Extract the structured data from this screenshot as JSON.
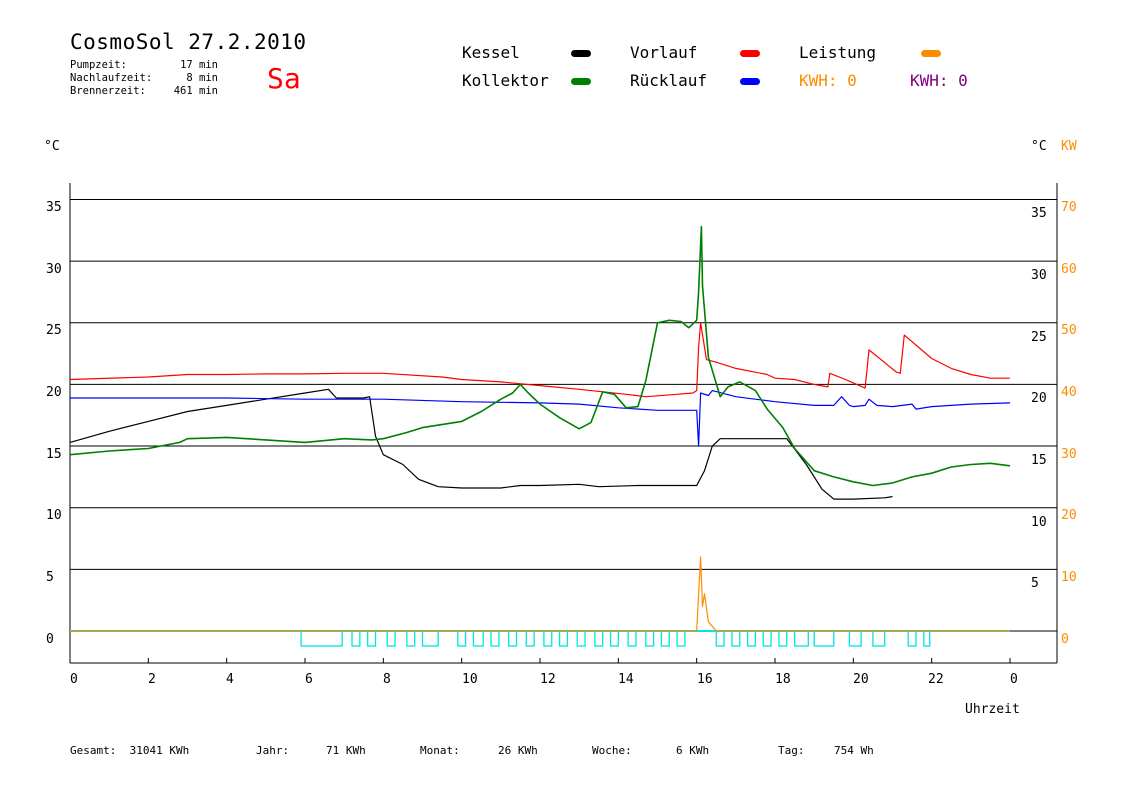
{
  "header": {
    "title": "CosmoSol 27.2.2010",
    "day": "Sa",
    "stats": [
      {
        "label": "Pumpzeit:",
        "value": "17 min"
      },
      {
        "label": "Nachlaufzeit:",
        "value": "8 min"
      },
      {
        "label": "Brennerzeit:",
        "value": "461 min"
      }
    ]
  },
  "legend": [
    {
      "name": "Kessel",
      "color": "#000000"
    },
    {
      "name": "Vorlauf",
      "color": "#ff0000"
    },
    {
      "name": "Leistung",
      "color": "#ff8c00"
    },
    {
      "name": "Kollektor",
      "color": "#008000"
    },
    {
      "name": "Rücklauf",
      "color": "#0000ff"
    }
  ],
  "kwh": [
    {
      "label": "KWH:",
      "value": "0",
      "color": "#ff8c00"
    },
    {
      "label": "KWH:",
      "value": "0",
      "color": "#800080"
    }
  ],
  "axes": {
    "left_unit": "°C",
    "right_unit_c": "°C",
    "right_unit_kw": "KW",
    "xlabel": "Uhrzeit",
    "left_ticks": [
      "35",
      "30",
      "25",
      "20",
      "15",
      "10",
      "5",
      "0"
    ],
    "right_ticks_c": [
      "35",
      "30",
      "25",
      "20",
      "15",
      "10",
      "5"
    ],
    "right_ticks_kw": [
      "70",
      "60",
      "50",
      "40",
      "30",
      "20",
      "10",
      "0"
    ],
    "x_ticks": [
      "0",
      "2",
      "4",
      "6",
      "8",
      "10",
      "12",
      "14",
      "16",
      "18",
      "20",
      "22",
      "0"
    ]
  },
  "footer": [
    {
      "label": "Gesamt:",
      "value": "31041 KWh"
    },
    {
      "label": "Jahr:",
      "value": "71 KWh"
    },
    {
      "label": "Monat:",
      "value": "26 KWh"
    },
    {
      "label": "Woche:",
      "value": "6 KWh"
    },
    {
      "label": "Tag:",
      "value": "754 Wh"
    }
  ],
  "chart_data": {
    "type": "line",
    "title": "CosmoSol 27.2.2010",
    "xlabel": "Uhrzeit",
    "ylabel": "°C",
    "xlim": [
      0,
      24
    ],
    "ylim": [
      -2,
      37
    ],
    "y2lim_kw": [
      -4,
      74
    ],
    "grid": "horizontal",
    "series": [
      {
        "name": "Kessel",
        "color": "#000000",
        "points": [
          [
            0,
            15.3
          ],
          [
            1,
            16.2
          ],
          [
            2,
            17.0
          ],
          [
            3,
            17.8
          ],
          [
            4,
            18.3
          ],
          [
            5,
            18.8
          ],
          [
            6,
            19.3
          ],
          [
            6.6,
            19.6
          ],
          [
            6.8,
            18.9
          ],
          [
            7.5,
            18.9
          ],
          [
            7.65,
            19.0
          ],
          [
            7.8,
            15.8
          ],
          [
            8,
            14.3
          ],
          [
            8.5,
            13.5
          ],
          [
            8.9,
            12.3
          ],
          [
            9.4,
            11.7
          ],
          [
            10,
            11.6
          ],
          [
            11,
            11.6
          ],
          [
            11.5,
            11.8
          ],
          [
            12,
            11.8
          ],
          [
            13,
            11.9
          ],
          [
            13.5,
            11.7
          ],
          [
            14.5,
            11.8
          ],
          [
            15.5,
            11.8
          ],
          [
            16.0,
            11.8
          ],
          [
            16.2,
            13.0
          ],
          [
            16.4,
            15.0
          ],
          [
            16.6,
            15.6
          ],
          [
            17.5,
            15.6
          ],
          [
            18.3,
            15.6
          ],
          [
            18.8,
            13.5
          ],
          [
            19.2,
            11.5
          ],
          [
            19.5,
            10.7
          ],
          [
            20,
            10.7
          ],
          [
            20.8,
            10.8
          ],
          [
            21,
            10.9
          ]
        ]
      },
      {
        "name": "Kollektor",
        "color": "#008000",
        "points": [
          [
            0,
            14.3
          ],
          [
            1,
            14.6
          ],
          [
            2,
            14.8
          ],
          [
            2.8,
            15.3
          ],
          [
            3,
            15.6
          ],
          [
            4,
            15.7
          ],
          [
            5,
            15.5
          ],
          [
            6,
            15.3
          ],
          [
            7,
            15.6
          ],
          [
            7.7,
            15.5
          ],
          [
            8,
            15.6
          ],
          [
            8.6,
            16.1
          ],
          [
            9,
            16.5
          ],
          [
            10,
            17.0
          ],
          [
            10.5,
            17.8
          ],
          [
            11,
            18.8
          ],
          [
            11.3,
            19.3
          ],
          [
            11.5,
            20.0
          ],
          [
            11.7,
            19.3
          ],
          [
            12,
            18.4
          ],
          [
            12.5,
            17.3
          ],
          [
            13,
            16.4
          ],
          [
            13.3,
            16.9
          ],
          [
            13.6,
            19.4
          ],
          [
            13.9,
            19.2
          ],
          [
            14.2,
            18.1
          ],
          [
            14.5,
            18.2
          ],
          [
            14.7,
            20.3
          ],
          [
            15,
            25.0
          ],
          [
            15.3,
            25.2
          ],
          [
            15.6,
            25.1
          ],
          [
            15.8,
            24.6
          ],
          [
            16.0,
            25.2
          ],
          [
            16.05,
            27.5
          ],
          [
            16.12,
            32.8
          ],
          [
            16.15,
            28.0
          ],
          [
            16.3,
            22.2
          ],
          [
            16.6,
            19.0
          ],
          [
            16.8,
            19.8
          ],
          [
            17.1,
            20.2
          ],
          [
            17.5,
            19.5
          ],
          [
            17.8,
            18.0
          ],
          [
            18.2,
            16.5
          ],
          [
            18.5,
            14.8
          ],
          [
            19,
            13.0
          ],
          [
            19.5,
            12.5
          ],
          [
            20,
            12.1
          ],
          [
            20.5,
            11.8
          ],
          [
            21,
            12.0
          ],
          [
            21.5,
            12.5
          ],
          [
            22,
            12.8
          ],
          [
            22.5,
            13.3
          ],
          [
            23,
            13.5
          ],
          [
            23.5,
            13.6
          ],
          [
            24,
            13.4
          ]
        ]
      },
      {
        "name": "Vorlauf",
        "color": "#ff0000",
        "points": [
          [
            0,
            20.4
          ],
          [
            2,
            20.6
          ],
          [
            3,
            20.8
          ],
          [
            4,
            20.8
          ],
          [
            5,
            20.85
          ],
          [
            6,
            20.85
          ],
          [
            7,
            20.9
          ],
          [
            8,
            20.9
          ],
          [
            9.5,
            20.6
          ],
          [
            10,
            20.4
          ],
          [
            11,
            20.2
          ],
          [
            12,
            19.9
          ],
          [
            13,
            19.6
          ],
          [
            13.6,
            19.4
          ],
          [
            14.2,
            19.2
          ],
          [
            14.7,
            19.0
          ],
          [
            15.5,
            19.2
          ],
          [
            15.9,
            19.3
          ],
          [
            16.0,
            19.5
          ],
          [
            16.05,
            23.0
          ],
          [
            16.1,
            25.0
          ],
          [
            16.25,
            22.0
          ],
          [
            16.5,
            21.8
          ],
          [
            17,
            21.3
          ],
          [
            17.8,
            20.8
          ],
          [
            18,
            20.5
          ],
          [
            18.5,
            20.4
          ],
          [
            19.0,
            20.0
          ],
          [
            19.35,
            19.8
          ],
          [
            19.4,
            20.9
          ],
          [
            19.8,
            20.4
          ],
          [
            20.3,
            19.7
          ],
          [
            20.4,
            22.8
          ],
          [
            21.1,
            21.0
          ],
          [
            21.2,
            20.9
          ],
          [
            21.3,
            24.0
          ],
          [
            22,
            22.1
          ],
          [
            22.5,
            21.3
          ],
          [
            23,
            20.8
          ],
          [
            23.5,
            20.5
          ],
          [
            24,
            20.5
          ]
        ]
      },
      {
        "name": "Rücklauf",
        "color": "#0000ff",
        "points": [
          [
            0,
            18.9
          ],
          [
            2,
            18.9
          ],
          [
            4,
            18.9
          ],
          [
            6,
            18.8
          ],
          [
            8,
            18.8
          ],
          [
            10,
            18.6
          ],
          [
            12,
            18.5
          ],
          [
            13,
            18.4
          ],
          [
            14,
            18.1
          ],
          [
            15,
            17.9
          ],
          [
            16.0,
            17.9
          ],
          [
            16.05,
            15.0
          ],
          [
            16.1,
            19.3
          ],
          [
            16.3,
            19.1
          ],
          [
            16.4,
            19.5
          ],
          [
            17,
            19.0
          ],
          [
            18,
            18.6
          ],
          [
            19,
            18.3
          ],
          [
            19.5,
            18.3
          ],
          [
            19.7,
            19.0
          ],
          [
            19.9,
            18.3
          ],
          [
            20,
            18.2
          ],
          [
            20.3,
            18.3
          ],
          [
            20.4,
            18.8
          ],
          [
            20.6,
            18.3
          ],
          [
            21,
            18.2
          ],
          [
            21.5,
            18.4
          ],
          [
            21.6,
            18.0
          ],
          [
            22,
            18.2
          ],
          [
            23,
            18.4
          ],
          [
            24,
            18.5
          ]
        ]
      },
      {
        "name": "Leistung",
        "color": "#ff8c00",
        "axis": "kw",
        "points": [
          [
            0,
            0
          ],
          [
            16.0,
            0
          ],
          [
            16.1,
            12.0
          ],
          [
            16.15,
            4.0
          ],
          [
            16.2,
            6.0
          ],
          [
            16.3,
            1.5
          ],
          [
            16.5,
            0
          ],
          [
            24,
            0
          ]
        ]
      }
    ]
  }
}
